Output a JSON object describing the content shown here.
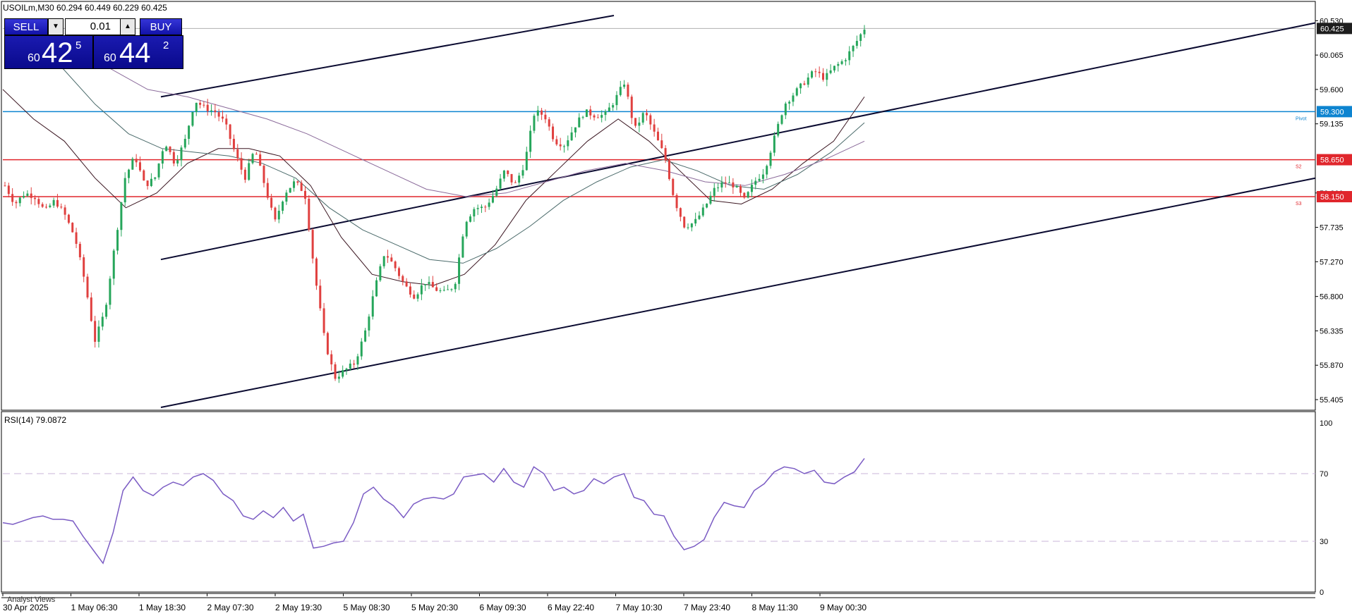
{
  "header": {
    "symbol_info": "USOILm,M30  60.294 60.449 60.229 60.425"
  },
  "trade_panel": {
    "sell_label": "SELL",
    "buy_label": "BUY",
    "lot_value": "0.01",
    "sell_price_prefix": "60",
    "sell_price_main": "42",
    "sell_price_sup": "5",
    "buy_price_prefix": "60",
    "buy_price_main": "44",
    "buy_price_sup": "2",
    "colors": {
      "panel": "#0f0fa0",
      "text": "#ffffff"
    }
  },
  "price_axis": {
    "ticks": [
      "60.530",
      "60.065",
      "59.600",
      "59.135",
      "58.200",
      "57.735",
      "57.270",
      "56.800",
      "56.335",
      "55.870",
      "55.405"
    ],
    "current_price_label": "60.425",
    "levels": [
      {
        "label": "59.300",
        "name": "Pivot",
        "color": "#0d84d0"
      },
      {
        "label": "58.650",
        "name": "S2",
        "color": "#e0262c"
      },
      {
        "label": "58.150",
        "name": "S3",
        "color": "#e0262c"
      }
    ]
  },
  "rsi": {
    "label": "RSI(14) 79.0872",
    "ticks": [
      "100",
      "70",
      "30",
      "0"
    ]
  },
  "time_axis": {
    "labels": [
      "30 Apr 2025",
      "1 May 06:30",
      "1 May 18:30",
      "2 May 07:30",
      "2 May 19:30",
      "5 May 08:30",
      "5 May 20:30",
      "6 May 09:30",
      "6 May 22:40",
      "7 May 10:30",
      "7 May 23:40",
      "8 May 11:30",
      "9 May 00:30"
    ]
  },
  "footer": {
    "analyst_views": "Analyst Views"
  },
  "chart_data": [
    {
      "type": "candlestick",
      "title": "USOILm,M30",
      "ylim": [
        55.3,
        60.6
      ],
      "last_ohlc": {
        "open": 60.294,
        "high": 60.449,
        "low": 60.229,
        "close": 60.425
      },
      "current_price": 60.425,
      "horizontal_levels": [
        {
          "name": "Pivot",
          "value": 59.3,
          "color": "#0d84d0"
        },
        {
          "name": "S2",
          "value": 58.65,
          "color": "#e0262c"
        },
        {
          "name": "S3",
          "value": 58.15,
          "color": "#e0262c"
        }
      ],
      "close_path": [
        58.3,
        58.05,
        58.2,
        58.15,
        57.95,
        58.1,
        57.9,
        57.6,
        57.0,
        56.2,
        56.6,
        57.5,
        58.4,
        58.7,
        58.3,
        58.4,
        58.9,
        58.6,
        58.9,
        59.45,
        59.35,
        59.3,
        59.15,
        58.75,
        58.4,
        58.8,
        58.3,
        57.8,
        58.2,
        58.35,
        58.2,
        57.1,
        56.2,
        55.7,
        55.8,
        55.9,
        56.3,
        56.9,
        57.4,
        57.2,
        56.95,
        56.8,
        57.0,
        56.9,
        56.85,
        56.95,
        57.8,
        58.0,
        58.0,
        58.2,
        58.5,
        58.3,
        58.6,
        59.3,
        59.25,
        58.9,
        58.85,
        59.1,
        59.3,
        59.25,
        59.25,
        59.45,
        59.7,
        59.05,
        59.3,
        59.0,
        58.7,
        58.1,
        57.75,
        57.8,
        58.0,
        58.25,
        58.35,
        58.3,
        58.1,
        58.35,
        58.5,
        58.95,
        59.4,
        59.55,
        59.7,
        59.85,
        59.75,
        59.9,
        60.0,
        60.2,
        60.425
      ],
      "moving_averages": [
        {
          "name": "MA fast",
          "color": "#3a1520",
          "values": [
            59.6,
            59.2,
            58.9,
            58.4,
            58.0,
            58.2,
            58.6,
            58.8,
            58.8,
            58.7,
            58.3,
            57.6,
            57.1,
            57.0,
            56.95,
            57.1,
            57.5,
            58.1,
            58.5,
            58.9,
            59.2,
            58.9,
            58.5,
            58.1,
            58.05,
            58.25,
            58.6,
            58.9,
            59.5
          ]
        },
        {
          "name": "MA medium",
          "color": "#4a6a6a",
          "values": [
            60.3,
            59.9,
            59.4,
            59.0,
            58.8,
            58.75,
            58.7,
            58.6,
            58.4,
            58.0,
            57.7,
            57.5,
            57.3,
            57.25,
            57.45,
            57.75,
            58.1,
            58.35,
            58.55,
            58.65,
            58.5,
            58.3,
            58.25,
            58.45,
            58.75,
            59.15
          ]
        },
        {
          "name": "MA slow",
          "color": "#8a6a9a",
          "values": [
            60.5,
            60.2,
            59.9,
            59.6,
            59.5,
            59.35,
            59.2,
            59.0,
            58.75,
            58.5,
            58.25,
            58.15,
            58.2,
            58.35,
            58.5,
            58.6,
            58.5,
            58.35,
            58.3,
            58.45,
            58.65,
            58.9
          ]
        }
      ],
      "channel_lines": [
        {
          "name": "upper",
          "from": {
            "x": "1 May 18:30",
            "y": 59.5
          },
          "to": {
            "x": "6 May 22:40",
            "y": 60.6
          }
        },
        {
          "name": "middle",
          "from": {
            "x": "1 May 18:30",
            "y": 57.3
          },
          "to": {
            "x": "right edge",
            "y": 60.5
          }
        },
        {
          "name": "lower",
          "from": {
            "x": "1 May 18:30",
            "y": 55.3
          },
          "to": {
            "x": "right edge",
            "y": 58.4
          }
        }
      ]
    },
    {
      "type": "line",
      "title": "RSI(14) 79.0872",
      "ylim": [
        0,
        100
      ],
      "levels": [
        70,
        30
      ],
      "values": [
        41,
        40,
        42,
        44,
        45,
        43,
        43,
        42,
        33,
        25,
        17,
        35,
        60,
        68,
        60,
        57,
        62,
        65,
        63,
        68,
        70,
        66,
        58,
        54,
        45,
        43,
        48,
        44,
        50,
        42,
        46,
        26,
        27,
        29,
        30,
        41,
        58,
        62,
        55,
        51,
        44,
        52,
        55,
        56,
        55,
        58,
        68,
        69,
        70,
        65,
        73,
        65,
        62,
        74,
        70,
        60,
        62,
        58,
        60,
        67,
        64,
        68,
        70,
        56,
        54,
        46,
        45,
        33,
        25,
        27,
        31,
        44,
        53,
        51,
        50,
        60,
        64,
        71,
        74,
        73,
        70,
        72,
        65,
        64,
        68,
        71,
        79
      ],
      "color": "#7b5cc4"
    }
  ]
}
